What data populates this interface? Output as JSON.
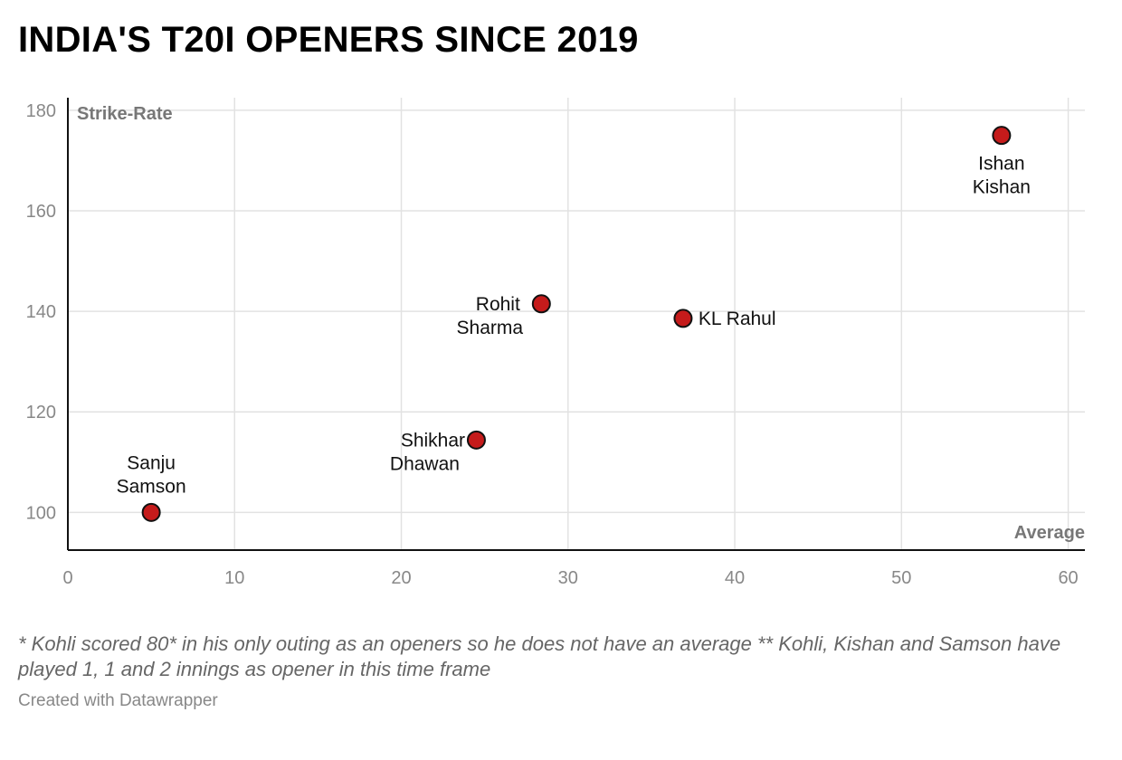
{
  "title": "INDIA'S T20I OPENERS SINCE 2019",
  "notes": "* Kohli scored 80* in his only outing as an openers so he does not have an average ** Kohli, Kishan and Samson have played 1, 1 and 2 innings as opener in this time frame",
  "credit": "Created with Datawrapper",
  "colors": {
    "point": "#c51b1b",
    "point_stroke": "#111111",
    "grid": "#e2e2e2",
    "axis": "#111111",
    "tick": "#888888",
    "axis_title": "#777777"
  },
  "chart_data": {
    "type": "scatter",
    "xlabel": "Average",
    "ylabel": "Strike-Rate",
    "xlim": [
      0,
      61
    ],
    "ylim": [
      92.5,
      182.5
    ],
    "x_ticks": [
      0,
      10,
      20,
      30,
      40,
      50,
      60
    ],
    "y_ticks": [
      100,
      120,
      140,
      160,
      180
    ],
    "grid": true,
    "points": [
      {
        "name": "Ishan Kishan",
        "label_lines": [
          "Ishan",
          "Kishan"
        ],
        "label_pos": "below",
        "x": 56.0,
        "y": 175.0
      },
      {
        "name": "Rohit Sharma",
        "label_lines": [
          "Rohit",
          "Sharma"
        ],
        "label_pos": "left",
        "x": 28.4,
        "y": 141.5
      },
      {
        "name": "KL Rahul",
        "label_lines": [
          "KL Rahul"
        ],
        "label_pos": "right",
        "x": 36.9,
        "y": 138.6
      },
      {
        "name": "Shikhar Dhawan",
        "label_lines": [
          "Shikhar",
          "Dhawan"
        ],
        "label_pos": "left",
        "x": 24.5,
        "y": 114.4
      },
      {
        "name": "Sanju Samson",
        "label_lines": [
          "Sanju",
          "Samson"
        ],
        "label_pos": "above",
        "x": 5.0,
        "y": 100.0
      }
    ]
  }
}
